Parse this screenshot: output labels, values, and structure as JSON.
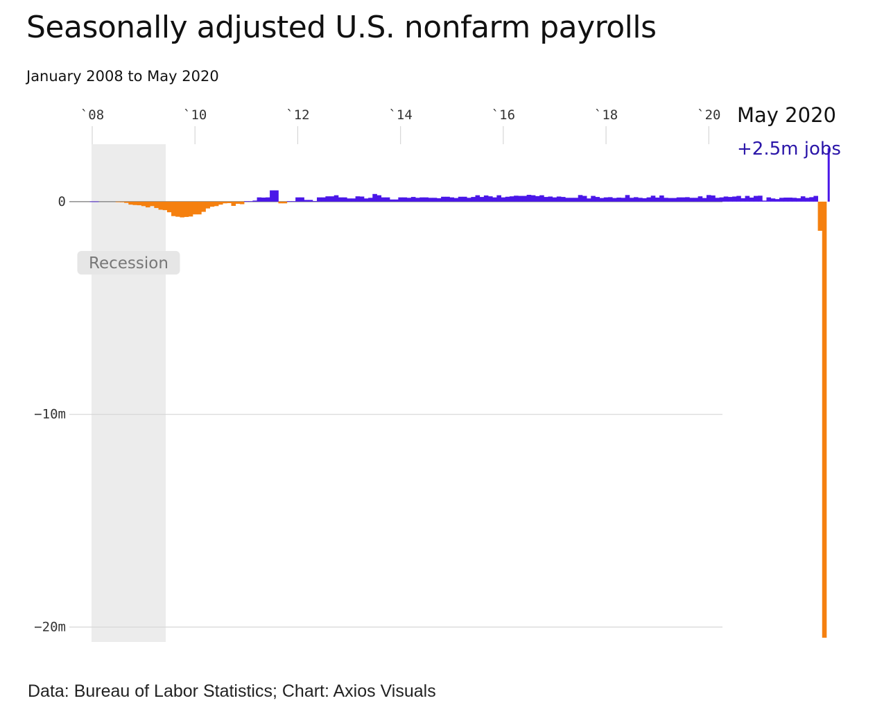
{
  "header": {
    "title": "Seasonally adjusted U.S. nonfarm payrolls",
    "subtitle": "January 2008 to May 2020"
  },
  "footer": {
    "source": "Data: Bureau of Labor Statistics; Chart: Axios Visuals"
  },
  "colors": {
    "positive": "#4a17e8",
    "negative": "#f5800f",
    "last_positive": "#2a15a8",
    "recession_shade": "#ececec",
    "grid": "#d6d6d6"
  },
  "chart_data": {
    "type": "bar",
    "x_start": "2008-01",
    "x_end": "2020-05",
    "x_tick_labels": [
      "`08",
      "`10",
      "`12",
      "`14",
      "`16",
      "`18",
      "`20"
    ],
    "y_tick_values": [
      0,
      -10,
      -20
    ],
    "y_tick_labels": [
      "0",
      "−10m",
      "−20m"
    ],
    "ylim": [
      -20.7,
      2.7
    ],
    "recession": {
      "label": "Recession",
      "start": "2008-01",
      "end": "2009-06"
    },
    "annotation": {
      "date_label": "May 2020",
      "value_label": "+2.5m jobs"
    },
    "grid": true,
    "values": [
      0.01,
      0.01,
      0.0,
      0.0,
      0.0,
      0.0,
      -0.02,
      -0.03,
      -0.06,
      -0.14,
      -0.16,
      -0.17,
      -0.21,
      -0.27,
      -0.21,
      -0.3,
      -0.38,
      -0.4,
      -0.5,
      -0.68,
      -0.71,
      -0.74,
      -0.72,
      -0.7,
      -0.6,
      -0.6,
      -0.48,
      -0.32,
      -0.24,
      -0.21,
      -0.14,
      -0.08,
      -0.07,
      -0.2,
      -0.1,
      -0.12,
      0.02,
      0.02,
      0.05,
      0.2,
      0.19,
      0.2,
      0.53,
      0.53,
      -0.08,
      -0.08,
      0.02,
      0.02,
      0.2,
      0.2,
      0.08,
      0.08,
      0.03,
      0.2,
      0.2,
      0.25,
      0.25,
      0.3,
      0.2,
      0.2,
      0.15,
      0.15,
      0.25,
      0.24,
      0.15,
      0.18,
      0.36,
      0.3,
      0.2,
      0.2,
      0.1,
      0.1,
      0.2,
      0.2,
      0.18,
      0.22,
      0.18,
      0.2,
      0.2,
      0.18,
      0.18,
      0.16,
      0.23,
      0.23,
      0.2,
      0.17,
      0.23,
      0.23,
      0.18,
      0.22,
      0.3,
      0.22,
      0.29,
      0.25,
      0.2,
      0.3,
      0.2,
      0.23,
      0.25,
      0.28,
      0.27,
      0.27,
      0.32,
      0.3,
      0.26,
      0.3,
      0.22,
      0.24,
      0.2,
      0.24,
      0.22,
      0.18,
      0.18,
      0.18,
      0.31,
      0.27,
      0.15,
      0.27,
      0.22,
      0.17,
      0.2,
      0.21,
      0.17,
      0.19,
      0.18,
      0.31,
      0.18,
      0.21,
      0.18,
      0.16,
      0.2,
      0.28,
      0.19,
      0.29,
      0.18,
      0.17,
      0.17,
      0.2,
      0.2,
      0.21,
      0.18,
      0.18,
      0.25,
      0.17,
      0.31,
      0.29,
      0.18,
      0.2,
      0.24,
      0.22,
      0.24,
      0.27,
      0.16,
      0.27,
      0.19,
      0.27,
      0.28,
      0.05,
      0.2,
      0.15,
      0.12,
      0.18,
      0.19,
      0.19,
      0.18,
      0.16,
      0.25,
      0.18,
      0.21,
      0.27,
      -1.37,
      -20.5,
      2.51
    ]
  }
}
